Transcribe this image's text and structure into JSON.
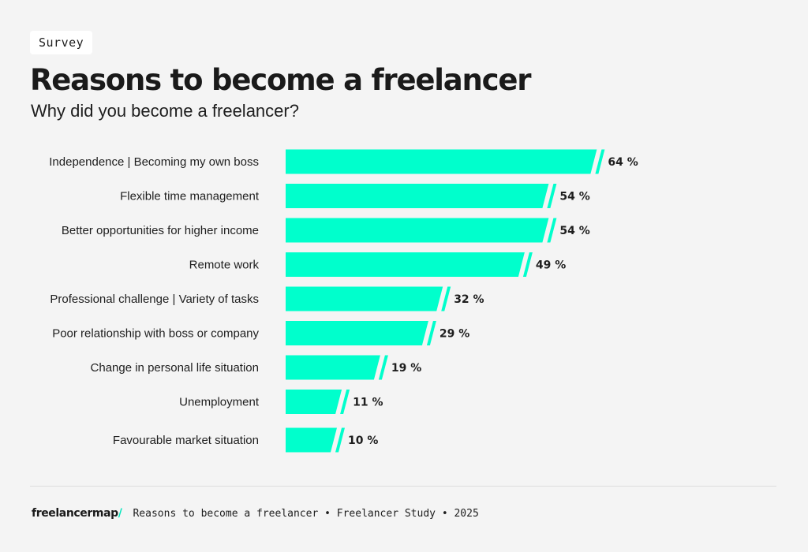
{
  "tag": "Survey",
  "title": "Reasons to become a freelancer",
  "subtitle": "Why did you become a freelancer?",
  "colors": {
    "bar": "#00ffcc",
    "background": "#f4f4f4",
    "text": "#1e1e1e",
    "brand_accent": "#00e6bd"
  },
  "chart_data": {
    "type": "bar",
    "orientation": "horizontal",
    "categories": [
      "Independence | Becoming my own boss",
      "Flexible time management",
      "Better opportunities for higher income",
      "Remote work",
      "Professional challenge | Variety of tasks",
      "Poor relationship with boss or company",
      "Change in personal life situation",
      "Unemployment",
      "Favourable market situation"
    ],
    "values": [
      64,
      54,
      54,
      49,
      32,
      29,
      19,
      11,
      10
    ],
    "value_labels": [
      "64 %",
      "54 %",
      "54 %",
      "49 %",
      "32 %",
      "29 %",
      "19 %",
      "11 %",
      "10 %"
    ],
    "unit": "%",
    "xlim": [
      0,
      100
    ],
    "grid": false,
    "legend": "none"
  },
  "footer": {
    "brand": "freelancermap",
    "brand_slash": "/",
    "text": "Reasons to become a freelancer • Freelancer Study • 2025"
  }
}
